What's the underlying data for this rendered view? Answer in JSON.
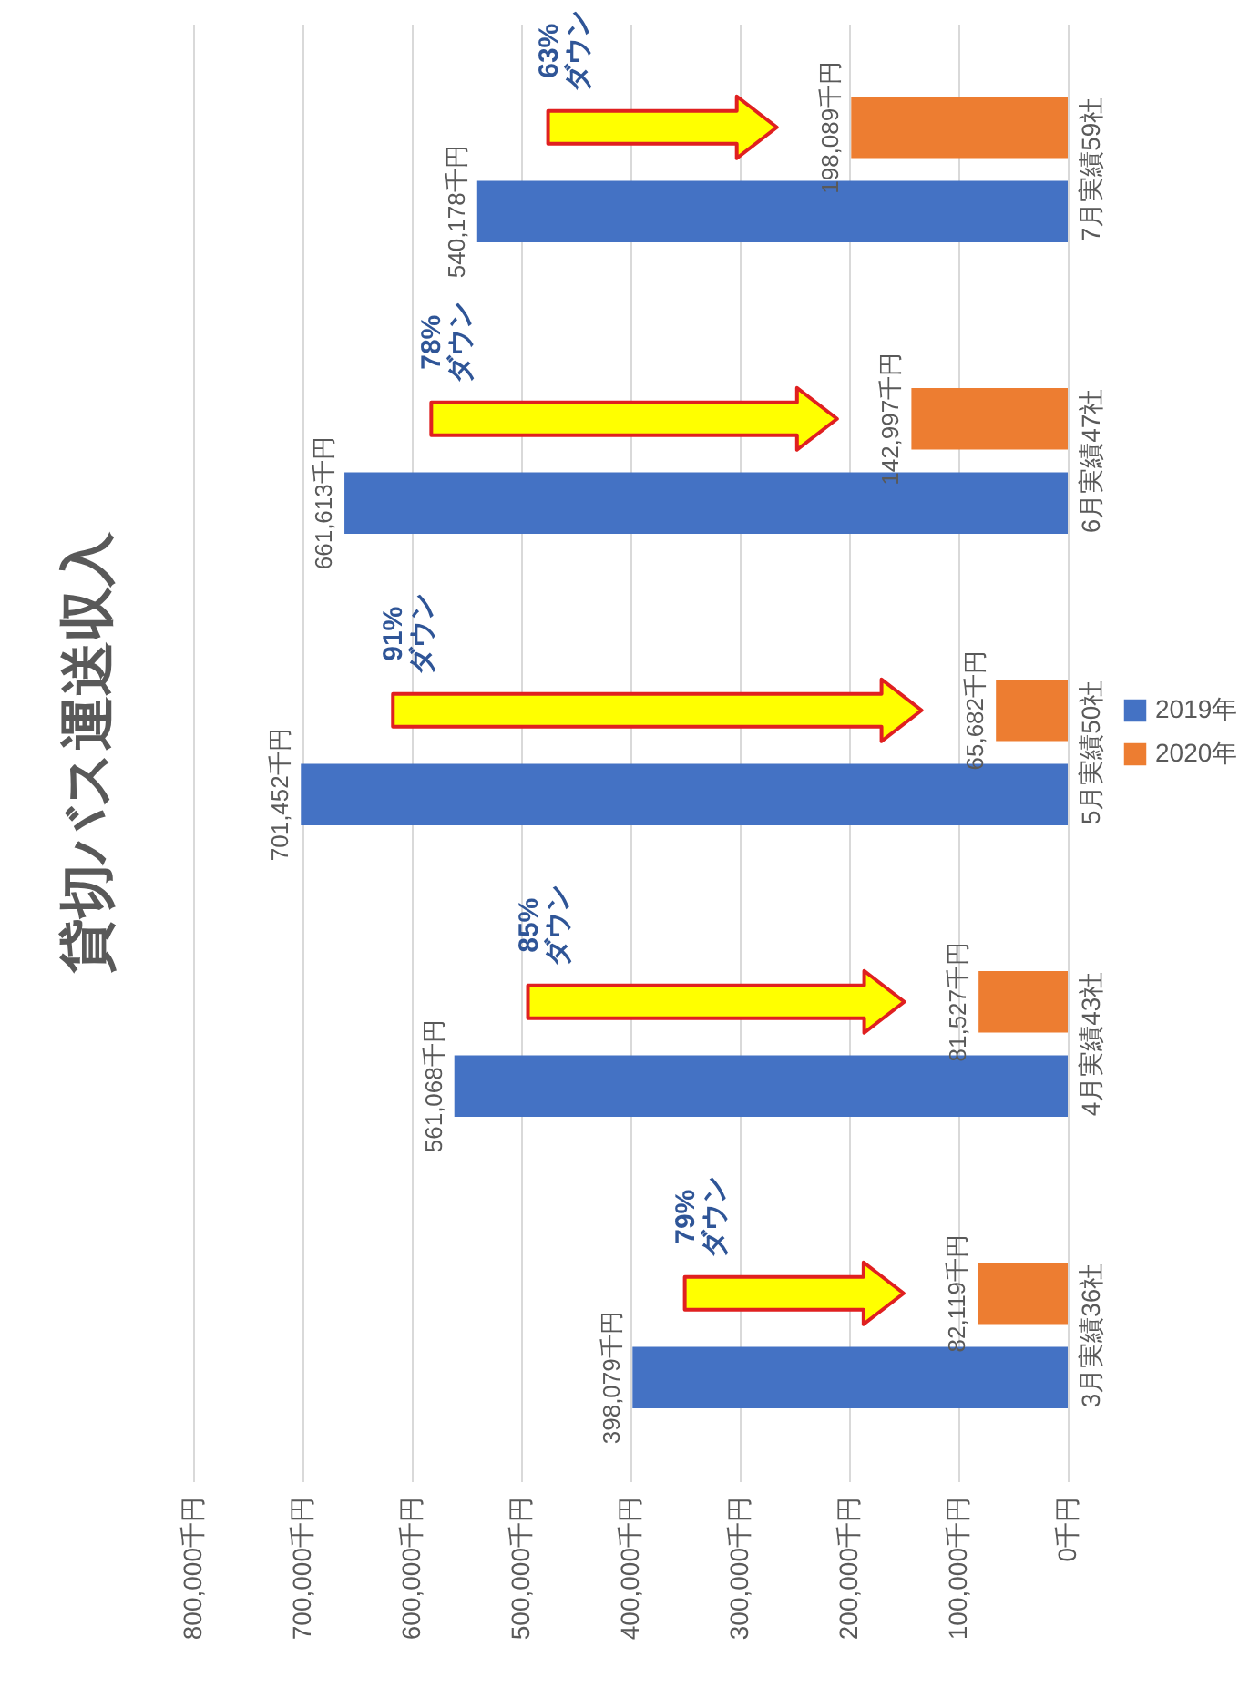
{
  "chart_data": {
    "type": "bar",
    "orientation": "horizontal",
    "title": "貸切バス運送収入",
    "categories": [
      "7月実績59社",
      "6月実績47社",
      "5月実績50社",
      "4月実績43社",
      "3月実績36社"
    ],
    "series": [
      {
        "name": "2019年",
        "color": "#4472c4",
        "values": [
          540178,
          661613,
          701452,
          561068,
          398079
        ],
        "value_labels": [
          "540,178千円",
          "661,613千円",
          "701,452千円",
          "561,068千円",
          "398,079千円"
        ]
      },
      {
        "name": "2020年",
        "color": "#ed7d31",
        "values": [
          198089,
          142997,
          65682,
          81527,
          82119
        ],
        "value_labels": [
          "198,089千円",
          "142,997千円",
          "65,682千円",
          "81,527千円",
          "82,119千円"
        ]
      }
    ],
    "xlim": [
      800000,
      0
    ],
    "xticks": [
      {
        "value": 800000,
        "label": "800,000千円"
      },
      {
        "value": 700000,
        "label": "700,000千円"
      },
      {
        "value": 600000,
        "label": "600,000千円"
      },
      {
        "value": 500000,
        "label": "500,000千円"
      },
      {
        "value": 400000,
        "label": "400,000千円"
      },
      {
        "value": 300000,
        "label": "300,000千円"
      },
      {
        "value": 200000,
        "label": "200,000千円"
      },
      {
        "value": 100000,
        "label": "100,000千円"
      },
      {
        "value": 0,
        "label": "0千円"
      }
    ],
    "grid": "x",
    "legend": "right",
    "annotations": [
      "63%ダウン",
      "78%ダウン",
      "91%ダウン",
      "85%ダウン",
      "79%ダウン"
    ]
  }
}
